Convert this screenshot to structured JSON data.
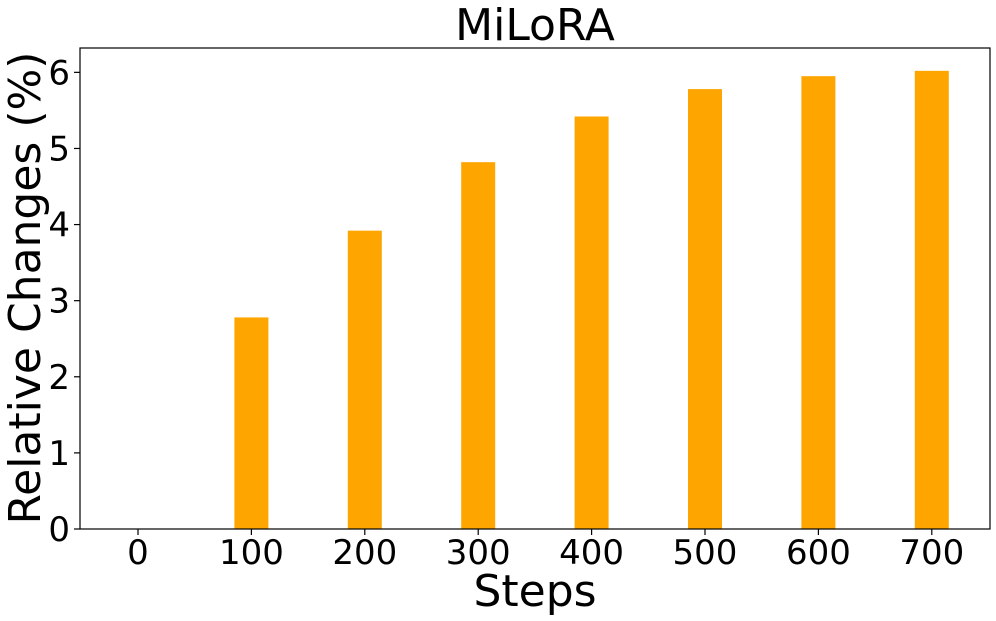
{
  "chart_data": {
    "type": "bar",
    "title": "MiLoRA",
    "xlabel": "Steps",
    "ylabel": "Relative Changes (%)",
    "categories": [
      "0",
      "100",
      "200",
      "300",
      "400",
      "500",
      "600",
      "700"
    ],
    "values": [
      0,
      2.78,
      3.92,
      4.82,
      5.42,
      5.78,
      5.95,
      6.02
    ],
    "yticks": [
      "0",
      "1",
      "2",
      "3",
      "4",
      "5",
      "6"
    ],
    "ylim": [
      0,
      6.32
    ],
    "grid": false,
    "bar_color": "#FFA500"
  }
}
